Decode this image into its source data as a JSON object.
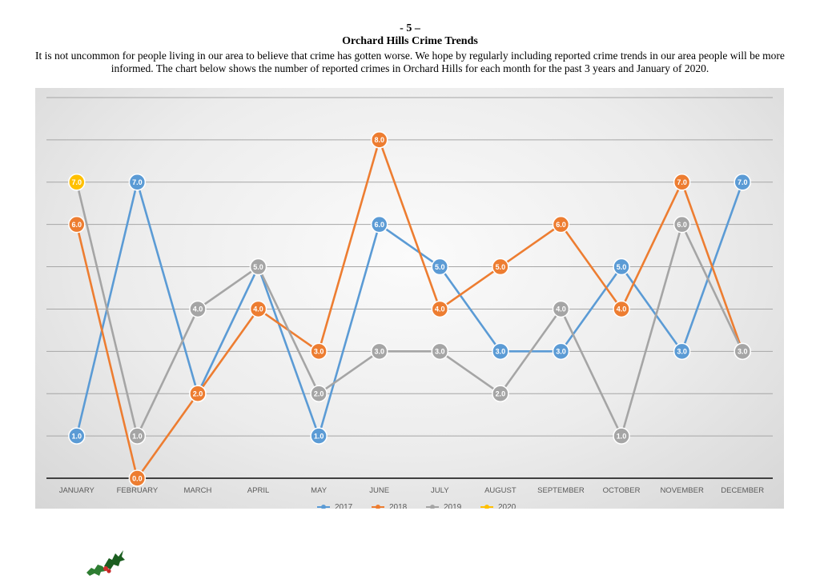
{
  "page": {
    "number": "- 5 –",
    "title": "Orchard Hills Crime Trends",
    "intro": "It is not uncommon for people living in our area to believe that crime has gotten worse. We hope by regularly including reported crime trends in our area people will be more informed. The chart below shows the number of reported crimes in Orchard Hills for each month for the past 3 years and January of 2020."
  },
  "chart_data": {
    "type": "line",
    "title": "",
    "xlabel": "",
    "ylabel": "",
    "ylim": [
      0,
      9
    ],
    "grid": true,
    "legend_position": "bottom",
    "categories": [
      "JANUARY",
      "FEBRUARY",
      "MARCH",
      "APRIL",
      "MAY",
      "JUNE",
      "JULY",
      "AUGUST",
      "SEPTEMBER",
      "OCTOBER",
      "NOVEMBER",
      "DECEMBER"
    ],
    "series": [
      {
        "name": "2017",
        "color": "#5b9bd5",
        "values": [
          1,
          7,
          2,
          5,
          1,
          6,
          5,
          3,
          3,
          5,
          3,
          7
        ]
      },
      {
        "name": "2018",
        "color": "#ed7d31",
        "values": [
          6,
          0,
          2,
          4,
          3,
          8,
          4,
          5,
          6,
          4,
          7,
          3
        ]
      },
      {
        "name": "2019",
        "color": "#a5a5a5",
        "values": [
          7,
          1,
          4,
          5,
          2,
          3,
          3,
          2,
          4,
          1,
          6,
          3
        ]
      },
      {
        "name": "2020",
        "color": "#ffc000",
        "values": [
          7,
          null,
          null,
          null,
          null,
          null,
          null,
          null,
          null,
          null,
          null,
          null
        ]
      }
    ]
  },
  "decoration": {
    "holly": "holly-icon"
  }
}
